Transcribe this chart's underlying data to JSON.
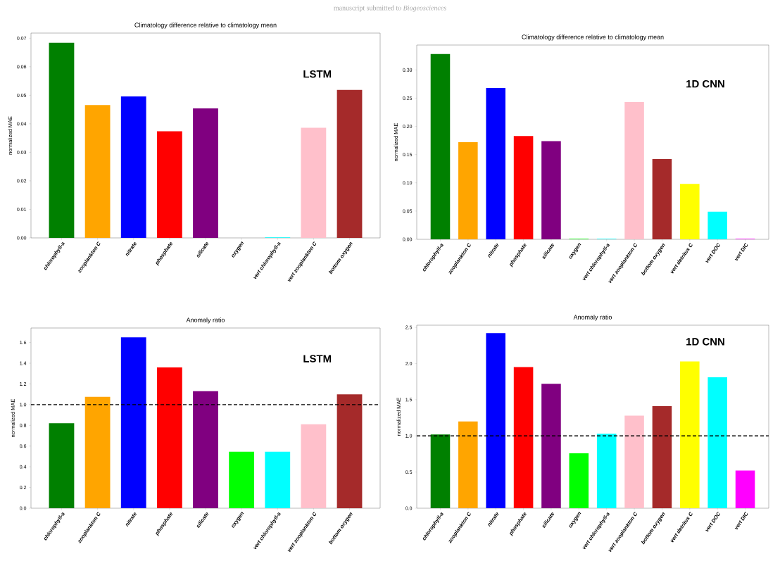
{
  "chart_data": [
    {
      "type": "bar",
      "title": "Climatology difference relative to climatology mean",
      "ylabel": "normalized MAE",
      "annotations": [
        "LSTM",
        "manuscript submitted to *Biogeosciences*"
      ],
      "categories": [
        "chlorophyll-a",
        "zooplankton C",
        "nitrate",
        "phosphate",
        "silicate",
        "oxygen",
        "vert chlorophyll-a",
        "vert zooplankton C",
        "bottom oxygen"
      ],
      "values": [
        0.0684,
        0.0466,
        0.0496,
        0.0374,
        0.0454,
        0,
        0.0002,
        0.0386,
        0.0519
      ],
      "colors": [
        "#008000",
        "#ffa500",
        "#0000ff",
        "#ff0000",
        "#800080",
        "#00ff00",
        "#00ffff",
        "#ffc0cb",
        "#a52a2a"
      ],
      "ylim": [
        0,
        0.0718
      ],
      "yticks": [
        {
          "value": 0,
          "label": "0.00"
        },
        {
          "value": 0.01,
          "label": "0.01"
        },
        {
          "value": 0.02,
          "label": "0.02"
        },
        {
          "value": 0.03,
          "label": "0.03"
        },
        {
          "value": 0.04,
          "label": "0.04"
        },
        {
          "value": 0.05,
          "label": "0.05"
        },
        {
          "value": 0.06,
          "label": "0.06"
        },
        {
          "value": 0.07,
          "label": "0.07"
        }
      ]
    },
    {
      "type": "bar",
      "title": "Climatology difference relative to climatology mean",
      "ylabel": "normalized MAE",
      "annotations": [
        "1D CNN"
      ],
      "categories": [
        "chlorophyll-a",
        "zooplankton C",
        "nitrate",
        "phosphate",
        "silicate",
        "oxygen",
        "vert chlorophyll-a",
        "vert zooplankton C",
        "bottom oxygen",
        "vert detritus C",
        "vert DOC",
        "vert DIC"
      ],
      "values": [
        0.328,
        0.172,
        0.268,
        0.183,
        0.174,
        0.001,
        0.001,
        0.243,
        0.142,
        0.098,
        0.049,
        0.001
      ],
      "colors": [
        "#008000",
        "#ffa500",
        "#0000ff",
        "#ff0000",
        "#800080",
        "#00ff00",
        "#00ffff",
        "#ffc0cb",
        "#a52a2a",
        "#ffff00",
        "#00ffff",
        "#ff00ff"
      ],
      "ylim": [
        0,
        0.344
      ],
      "yticks": [
        {
          "value": 0,
          "label": "0.00"
        },
        {
          "value": 0.05,
          "label": "0.05"
        },
        {
          "value": 0.1,
          "label": "0.10"
        },
        {
          "value": 0.15,
          "label": "0.15"
        },
        {
          "value": 0.2,
          "label": "0.20"
        },
        {
          "value": 0.25,
          "label": "0.25"
        },
        {
          "value": 0.3,
          "label": "0.30"
        }
      ]
    },
    {
      "type": "bar",
      "title": "Anomaly ratio",
      "ylabel": "normalized MAE",
      "annotations": [
        "LSTM"
      ],
      "categories": [
        "chlorophyll-a",
        "zooplankton C",
        "nitrate",
        "phosphate",
        "silicate",
        "oxygen",
        "vert chlorophyll-a",
        "vert zooplankton C",
        "bottom oxygen"
      ],
      "values": [
        0.82,
        1.075,
        1.65,
        1.36,
        1.13,
        0.545,
        0.545,
        0.81,
        1.1
      ],
      "colors": [
        "#008000",
        "#ffa500",
        "#0000ff",
        "#ff0000",
        "#800080",
        "#00ff00",
        "#00ffff",
        "#ffc0cb",
        "#a52a2a"
      ],
      "ylim": [
        0,
        1.74
      ],
      "yticks": [
        {
          "value": 0,
          "label": "0.0"
        },
        {
          "value": 0.2,
          "label": "0.2"
        },
        {
          "value": 0.4,
          "label": "0.4"
        },
        {
          "value": 0.6,
          "label": "0.6"
        },
        {
          "value": 0.8,
          "label": "0.8"
        },
        {
          "value": 1,
          "label": "1.0"
        },
        {
          "value": 1.2,
          "label": "1.2"
        },
        {
          "value": 1.4,
          "label": "1.4"
        },
        {
          "value": 1.6,
          "label": "1.6"
        }
      ],
      "ref_lines": [
        {
          "axis": "y",
          "value": 1,
          "color": "#000000",
          "line_style": "dashed"
        }
      ]
    },
    {
      "type": "bar",
      "title": "Anomaly ratio",
      "ylabel": "normalized MAE",
      "annotations": [
        "1D CNN"
      ],
      "categories": [
        "chlorophyll-a",
        "zooplankton C",
        "nitrate",
        "phosphate",
        "silicate",
        "oxygen",
        "vert chlorophyll-a",
        "vert zooplankton C",
        "bottom oxygen",
        "vert detritus C",
        "vert DOC",
        "vert DIC"
      ],
      "values": [
        1.02,
        1.2,
        2.42,
        1.95,
        1.72,
        0.76,
        1.03,
        1.28,
        1.41,
        2.03,
        1.81,
        0.52
      ],
      "colors": [
        "#008000",
        "#ffa500",
        "#0000ff",
        "#ff0000",
        "#800080",
        "#00ff00",
        "#00ffff",
        "#ffc0cb",
        "#a52a2a",
        "#ffff00",
        "#00ffff",
        "#ff00ff"
      ],
      "ylim": [
        0,
        2.53
      ],
      "yticks": [
        {
          "value": 0,
          "label": "0.0"
        },
        {
          "value": 0.5,
          "label": "0.5"
        },
        {
          "value": 1,
          "label": "1.0"
        },
        {
          "value": 1.5,
          "label": "1.5"
        },
        {
          "value": 2,
          "label": "2.0"
        },
        {
          "value": 2.5,
          "label": "2.5"
        }
      ],
      "ref_lines": [
        {
          "axis": "y",
          "value": 1,
          "color": "#000000",
          "line_style": "dashed"
        }
      ]
    }
  ]
}
